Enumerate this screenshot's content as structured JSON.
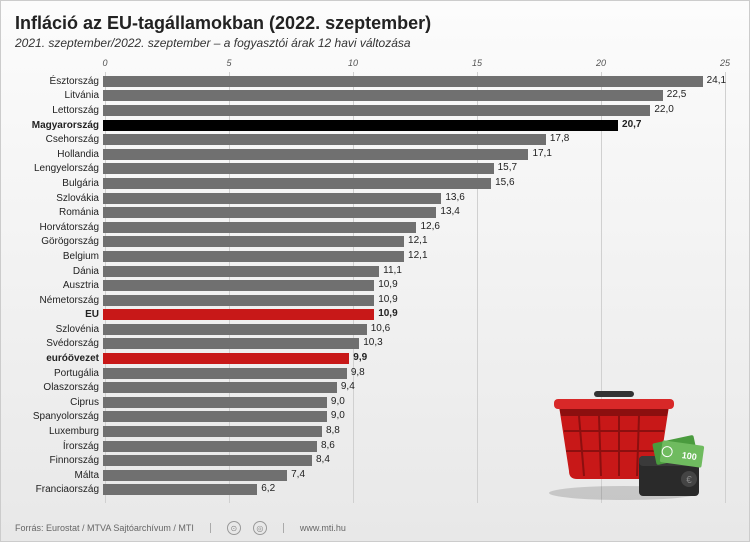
{
  "title": "Infláció az EU-tagállamokban (2022. szeptember)",
  "subtitle": "2021. szeptember/2022. szeptember – a fogyasztói árak 12 havi változása",
  "chart": {
    "type": "bar-horizontal",
    "xmax": 25,
    "xticks": [
      0,
      5,
      10,
      15,
      20,
      25
    ],
    "bar_color_default": "#707070",
    "bar_color_highlight1": "#000000",
    "bar_color_highlight2": "#c81818",
    "grid_color": "#d0d0d0",
    "background_gradient": [
      "#fcfcfc",
      "#e8e8e8"
    ],
    "label_fontsize": 10,
    "value_fontsize": 10,
    "rows": [
      {
        "label": "Észtország",
        "value": 24.1,
        "color": "#707070",
        "bold": false
      },
      {
        "label": "Litvánia",
        "value": 22.5,
        "color": "#707070",
        "bold": false
      },
      {
        "label": "Lettország",
        "value": 22.0,
        "color": "#707070",
        "bold": false
      },
      {
        "label": "Magyarország",
        "value": 20.7,
        "color": "#000000",
        "bold": true
      },
      {
        "label": "Csehország",
        "value": 17.8,
        "color": "#707070",
        "bold": false
      },
      {
        "label": "Hollandia",
        "value": 17.1,
        "color": "#707070",
        "bold": false
      },
      {
        "label": "Lengyelország",
        "value": 15.7,
        "color": "#707070",
        "bold": false
      },
      {
        "label": "Bulgária",
        "value": 15.6,
        "color": "#707070",
        "bold": false
      },
      {
        "label": "Szlovákia",
        "value": 13.6,
        "color": "#707070",
        "bold": false
      },
      {
        "label": "Románia",
        "value": 13.4,
        "color": "#707070",
        "bold": false
      },
      {
        "label": "Horvátország",
        "value": 12.6,
        "color": "#707070",
        "bold": false
      },
      {
        "label": "Görögország",
        "value": 12.1,
        "color": "#707070",
        "bold": false
      },
      {
        "label": "Belgium",
        "value": 12.1,
        "color": "#707070",
        "bold": false
      },
      {
        "label": "Dánia",
        "value": 11.1,
        "color": "#707070",
        "bold": false
      },
      {
        "label": "Ausztria",
        "value": 10.9,
        "color": "#707070",
        "bold": false
      },
      {
        "label": "Németország",
        "value": 10.9,
        "color": "#707070",
        "bold": false
      },
      {
        "label": "EU",
        "value": 10.9,
        "color": "#c81818",
        "bold": true
      },
      {
        "label": "Szlovénia",
        "value": 10.6,
        "color": "#707070",
        "bold": false
      },
      {
        "label": "Svédország",
        "value": 10.3,
        "color": "#707070",
        "bold": false
      },
      {
        "label": "euróövezet",
        "value": 9.9,
        "color": "#c81818",
        "bold": true
      },
      {
        "label": "Portugália",
        "value": 9.8,
        "color": "#707070",
        "bold": false
      },
      {
        "label": "Olaszország",
        "value": 9.4,
        "color": "#707070",
        "bold": false
      },
      {
        "label": "Ciprus",
        "value": 9.0,
        "color": "#707070",
        "bold": false
      },
      {
        "label": "Spanyolország",
        "value": 9.0,
        "color": "#707070",
        "bold": false
      },
      {
        "label": "Luxemburg",
        "value": 8.8,
        "color": "#707070",
        "bold": false
      },
      {
        "label": "Írország",
        "value": 8.6,
        "color": "#707070",
        "bold": false
      },
      {
        "label": "Finnország",
        "value": 8.4,
        "color": "#707070",
        "bold": false
      },
      {
        "label": "Málta",
        "value": 7.4,
        "color": "#707070",
        "bold": false
      },
      {
        "label": "Franciaország",
        "value": 6.2,
        "color": "#707070",
        "bold": false
      }
    ]
  },
  "footer": {
    "source": "Forrás: Eurostat / MTVA Sajtóarchívum / MTI",
    "url": "www.mti.hu"
  },
  "illustration": {
    "basket_color": "#c81818",
    "basket_dark": "#8c0f0f",
    "wallet_color": "#2a2a2a",
    "money_colors": [
      "#4a9b3e",
      "#6fbb5f"
    ]
  }
}
